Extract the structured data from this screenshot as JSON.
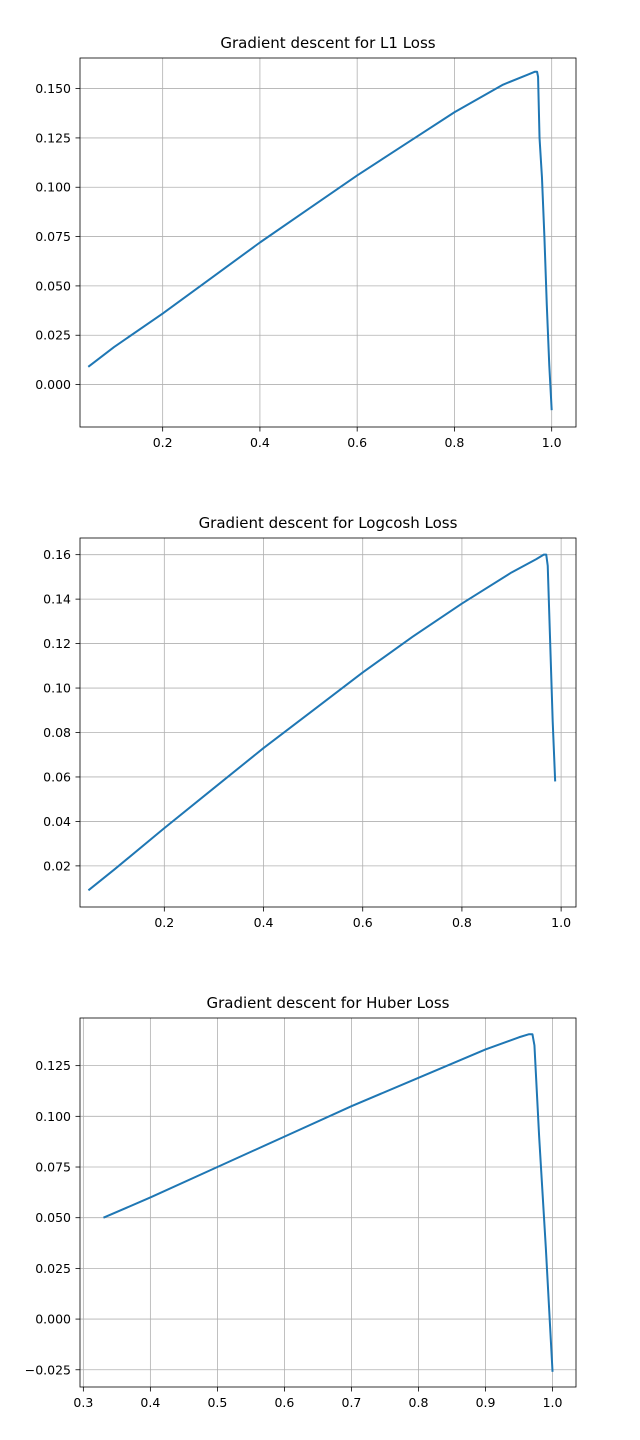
{
  "chart_data": [
    {
      "type": "line",
      "title": "Gradient descent for L1 Loss",
      "xlabel": "",
      "ylabel": "",
      "grid": true,
      "xlim": [
        0.03,
        1.05
      ],
      "ylim": [
        -0.0215,
        0.1655
      ],
      "xticks": [
        0.2,
        0.4,
        0.6,
        0.8,
        1.0
      ],
      "xtick_labels": [
        "0.2",
        "0.4",
        "0.6",
        "0.8",
        "1.0"
      ],
      "yticks": [
        0.0,
        0.025,
        0.05,
        0.075,
        0.1,
        0.125,
        0.15
      ],
      "ytick_labels": [
        "0.000",
        "0.025",
        "0.050",
        "0.075",
        "0.100",
        "0.125",
        "0.150"
      ],
      "series": [
        {
          "color": "#1f77b4",
          "x": [
            0.047,
            0.1,
            0.2,
            0.3,
            0.4,
            0.5,
            0.6,
            0.7,
            0.8,
            0.9,
            0.95,
            0.965,
            0.97,
            0.972,
            0.975,
            0.98,
            0.985,
            0.99,
            0.995,
            1.0
          ],
          "y": [
            0.009,
            0.019,
            0.036,
            0.054,
            0.072,
            0.089,
            0.106,
            0.122,
            0.138,
            0.152,
            0.157,
            0.1585,
            0.1585,
            0.156,
            0.125,
            0.105,
            0.075,
            0.04,
            0.01,
            -0.013
          ]
        }
      ]
    },
    {
      "type": "line",
      "title": "Gradient descent for Logcosh Loss",
      "xlabel": "",
      "ylabel": "",
      "grid": true,
      "xlim": [
        0.03,
        1.03
      ],
      "ylim": [
        0.0015,
        0.1675
      ],
      "xticks": [
        0.2,
        0.4,
        0.6,
        0.8,
        1.0
      ],
      "xtick_labels": [
        "0.2",
        "0.4",
        "0.6",
        "0.8",
        "1.0"
      ],
      "yticks": [
        0.02,
        0.04,
        0.06,
        0.08,
        0.1,
        0.12,
        0.14,
        0.16
      ],
      "ytick_labels": [
        "0.02",
        "0.04",
        "0.06",
        "0.08",
        "0.10",
        "0.12",
        "0.14",
        "0.16"
      ],
      "series": [
        {
          "color": "#1f77b4",
          "x": [
            0.047,
            0.1,
            0.2,
            0.3,
            0.4,
            0.5,
            0.6,
            0.7,
            0.8,
            0.9,
            0.95,
            0.965,
            0.97,
            0.973,
            0.978,
            0.983,
            0.988
          ],
          "y": [
            0.009,
            0.0185,
            0.037,
            0.055,
            0.073,
            0.09,
            0.107,
            0.123,
            0.138,
            0.152,
            0.158,
            0.16,
            0.16,
            0.155,
            0.12,
            0.085,
            0.058
          ]
        }
      ]
    },
    {
      "type": "line",
      "title": "Gradient descent for Huber Loss",
      "xlabel": "",
      "ylabel": "",
      "grid": true,
      "xlim": [
        0.295,
        1.035
      ],
      "ylim": [
        -0.0335,
        0.1485
      ],
      "xticks": [
        0.3,
        0.4,
        0.5,
        0.6,
        0.7,
        0.8,
        0.9,
        1.0
      ],
      "xtick_labels": [
        "0.3",
        "0.4",
        "0.5",
        "0.6",
        "0.7",
        "0.8",
        "0.9",
        "1.0"
      ],
      "yticks": [
        -0.025,
        0.0,
        0.025,
        0.05,
        0.075,
        0.1,
        0.125
      ],
      "ytick_labels": [
        "−0.025",
        "0.000",
        "0.025",
        "0.050",
        "0.075",
        "0.100",
        "0.125"
      ],
      "series": [
        {
          "color": "#1f77b4",
          "x": [
            0.33,
            0.4,
            0.5,
            0.6,
            0.7,
            0.8,
            0.9,
            0.95,
            0.965,
            0.97,
            0.973,
            0.98,
            0.99,
            1.0
          ],
          "y": [
            0.05,
            0.06,
            0.075,
            0.09,
            0.105,
            0.119,
            0.133,
            0.139,
            0.1405,
            0.1405,
            0.135,
            0.09,
            0.035,
            -0.026
          ]
        }
      ]
    }
  ]
}
